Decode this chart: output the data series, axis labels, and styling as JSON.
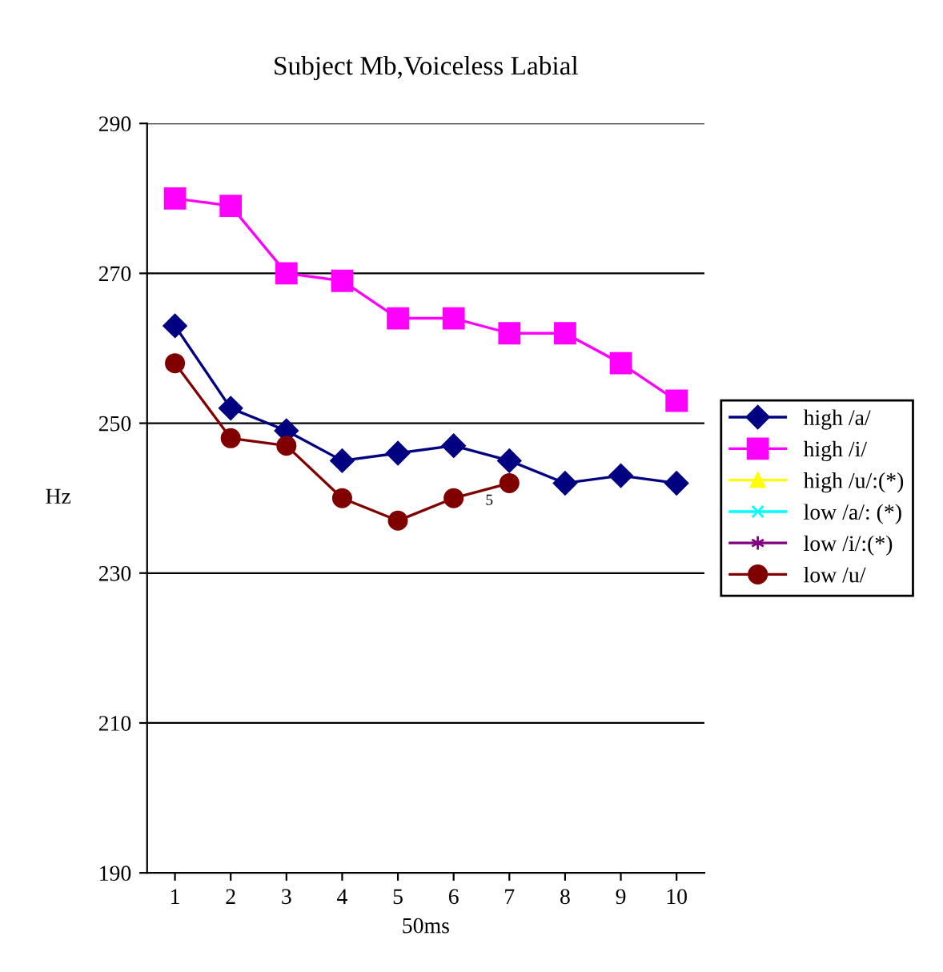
{
  "chart_data": {
    "type": "line",
    "title": "Subject Mb,Voiceless Labial",
    "xlabel": "50ms",
    "ylabel": "Hz",
    "categories": [
      "1",
      "2",
      "3",
      "4",
      "5",
      "6",
      "7",
      "8",
      "9",
      "10"
    ],
    "ylim": [
      190,
      290
    ],
    "yticks": [
      190,
      210,
      230,
      250,
      270,
      290
    ],
    "grid": "y",
    "legend": "right",
    "series": [
      {
        "name": "high /a/",
        "color": "#000080",
        "marker": "diamond",
        "values": [
          263,
          252,
          249,
          245,
          246,
          247,
          245,
          242,
          243,
          242
        ]
      },
      {
        "name": "high /i/",
        "color": "#ff00ff",
        "marker": "square",
        "values": [
          280,
          279,
          270,
          269,
          264,
          264,
          262,
          262,
          258,
          253
        ]
      },
      {
        "name": "high /u/:(*)",
        "color": "#ffff00",
        "marker": "triangle",
        "values": [
          null,
          null,
          null,
          null,
          null,
          null,
          null,
          null,
          null,
          null
        ]
      },
      {
        "name": "low /a/: (*)",
        "color": "#00ffff",
        "marker": "cross",
        "values": [
          null,
          null,
          null,
          null,
          null,
          null,
          null,
          null,
          null,
          null
        ]
      },
      {
        "name": "low /i/:(*)",
        "color": "#800080",
        "marker": "star",
        "values": [
          null,
          null,
          null,
          null,
          null,
          null,
          null,
          null,
          null,
          null
        ]
      },
      {
        "name": "low /u/",
        "color": "#800000",
        "marker": "circle",
        "values": [
          258,
          248,
          247,
          240,
          237,
          240,
          242,
          null,
          null,
          null
        ]
      }
    ],
    "annotations": [
      "5"
    ]
  }
}
